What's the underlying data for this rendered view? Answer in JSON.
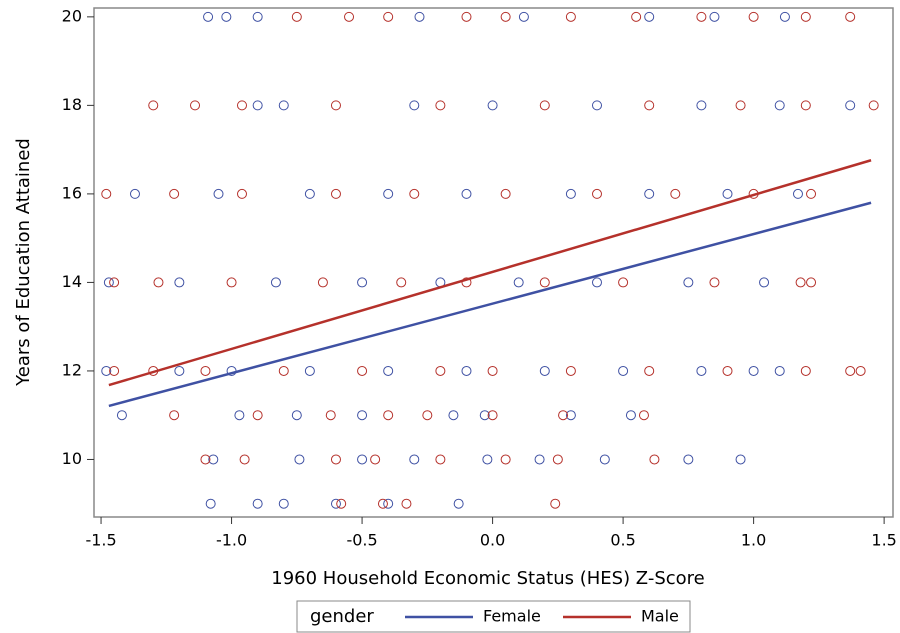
{
  "chart_data": {
    "type": "scatter",
    "x_label": "1960 Household Economic Status (HES) Z-Score",
    "y_label": "Years of Education Attained",
    "legend_title": "gender",
    "xlim": [
      -1.527,
      1.534
    ],
    "ylim": [
      8.7,
      20.2
    ],
    "xticks": [
      -1.5,
      {
        "value": -1.0,
        "label": "-1.0"
      },
      -0.5,
      {
        "value": 0,
        "label": "0.0"
      },
      0.5,
      {
        "value": 1.0,
        "label": "1.0"
      },
      1.5
    ],
    "yticks": [
      10,
      12,
      14,
      16,
      18,
      20
    ],
    "series": [
      {
        "name": "Female",
        "color": "#3f51a3",
        "x": [
          -1.08,
          -0.9,
          -0.8,
          -0.6,
          -0.4,
          -0.13,
          -1.07,
          -0.74,
          -0.5,
          -0.3,
          -0.02,
          0.18,
          0.43,
          0.75,
          0.95,
          -1.42,
          -0.97,
          -0.75,
          -0.5,
          -0.15,
          -0.03,
          0.3,
          0.53,
          -1.48,
          -1.2,
          -1.0,
          -0.7,
          -0.4,
          -0.1,
          0.2,
          0.5,
          0.8,
          1.0,
          1.1,
          -1.47,
          -1.2,
          -0.83,
          -0.5,
          -0.2,
          0.1,
          0.4,
          0.75,
          1.04,
          -1.37,
          -1.05,
          -0.7,
          -0.4,
          -0.1,
          0.3,
          0.6,
          0.9,
          1.17,
          -0.9,
          -0.8,
          -0.3,
          0.0,
          0.4,
          0.8,
          1.1,
          1.37,
          -1.09,
          -1.02,
          -0.9,
          -0.28,
          0.12,
          0.6,
          0.85,
          1.12
        ],
        "values": [
          9,
          9,
          9,
          9,
          9,
          9,
          10,
          10,
          10,
          10,
          10,
          10,
          10,
          10,
          10,
          11,
          11,
          11,
          11,
          11,
          11,
          11,
          11,
          12,
          12,
          12,
          12,
          12,
          12,
          12,
          12,
          12,
          12,
          12,
          14,
          14,
          14,
          14,
          14,
          14,
          14,
          14,
          14,
          16,
          16,
          16,
          16,
          16,
          16,
          16,
          16,
          16,
          18,
          18,
          18,
          18,
          18,
          18,
          18,
          18,
          20,
          20,
          20,
          20,
          20,
          20,
          20,
          20
        ],
        "fit_x": [
          -1.47,
          1.45
        ],
        "fit_values": [
          11.21,
          15.8
        ]
      },
      {
        "name": "Male",
        "color": "#b5312b",
        "x": [
          -0.58,
          -0.42,
          -0.33,
          0.24,
          -1.1,
          -0.95,
          -0.6,
          -0.45,
          -0.2,
          0.05,
          0.25,
          0.62,
          -1.22,
          -0.9,
          -0.62,
          -0.4,
          -0.25,
          0.0,
          0.27,
          0.58,
          -1.45,
          -1.3,
          -1.1,
          -0.8,
          -0.5,
          -0.2,
          0.0,
          0.3,
          0.6,
          0.9,
          1.2,
          1.37,
          1.41,
          -1.45,
          -1.28,
          -1.0,
          -0.65,
          -0.35,
          -0.1,
          0.2,
          0.5,
          0.85,
          1.18,
          1.22,
          -1.48,
          -1.22,
          -0.96,
          -0.6,
          -0.3,
          0.05,
          0.4,
          0.7,
          1.0,
          1.22,
          -1.3,
          -1.14,
          -0.96,
          -0.6,
          -0.2,
          0.2,
          0.6,
          0.95,
          1.2,
          1.46,
          -0.75,
          -0.55,
          -0.4,
          -0.1,
          0.05,
          0.3,
          0.55,
          0.8,
          1.0,
          1.2,
          1.37
        ],
        "values": [
          9,
          9,
          9,
          9,
          10,
          10,
          10,
          10,
          10,
          10,
          10,
          10,
          11,
          11,
          11,
          11,
          11,
          11,
          11,
          11,
          12,
          12,
          12,
          12,
          12,
          12,
          12,
          12,
          12,
          12,
          12,
          12,
          12,
          14,
          14,
          14,
          14,
          14,
          14,
          14,
          14,
          14,
          14,
          14,
          16,
          16,
          16,
          16,
          16,
          16,
          16,
          16,
          16,
          16,
          18,
          18,
          18,
          18,
          18,
          18,
          18,
          18,
          18,
          18,
          20,
          20,
          20,
          20,
          20,
          20,
          20,
          20,
          20,
          20,
          20
        ],
        "fit_x": [
          -1.47,
          1.45
        ],
        "fit_values": [
          11.68,
          16.76
        ]
      }
    ]
  }
}
